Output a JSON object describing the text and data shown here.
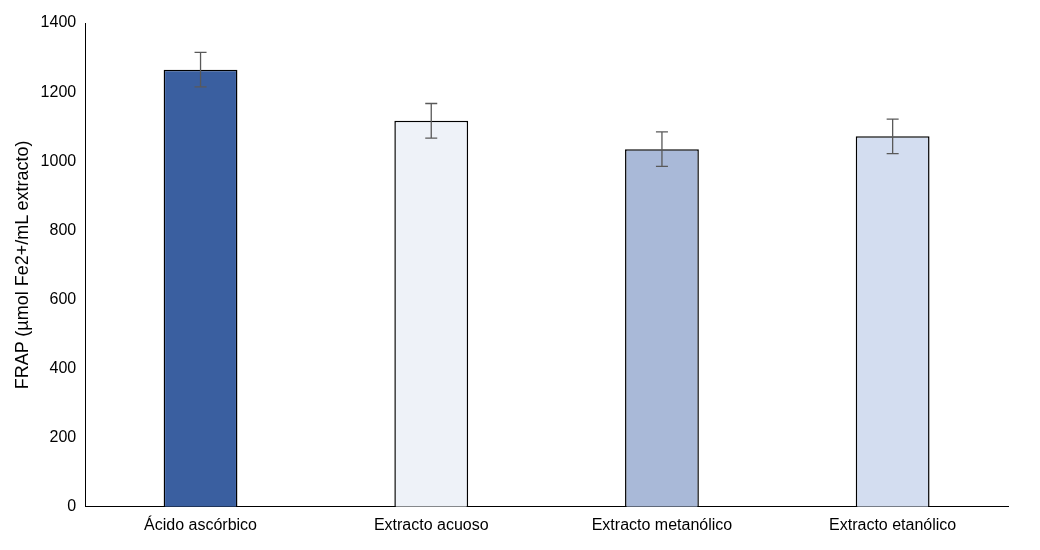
{
  "chart_data": {
    "type": "bar",
    "ylabel": "FRAP (µmol Fe2+/mL extracto)",
    "categories": [
      "Ácido ascórbico",
      "Extracto acuoso",
      "Extracto metanólico",
      "Extracto etanólico"
    ],
    "values": [
      1265,
      1117,
      1035,
      1072
    ],
    "colors": [
      "#3a5fa0",
      "#eef2f8",
      "#a9b9d8",
      "#d3ddf0"
    ],
    "errors": [
      50,
      50,
      50,
      50
    ],
    "ylim": [
      0,
      1400
    ],
    "yticks": [
      0,
      200,
      400,
      600,
      800,
      1000,
      1200,
      1400
    ],
    "grid": false,
    "legend": false
  }
}
